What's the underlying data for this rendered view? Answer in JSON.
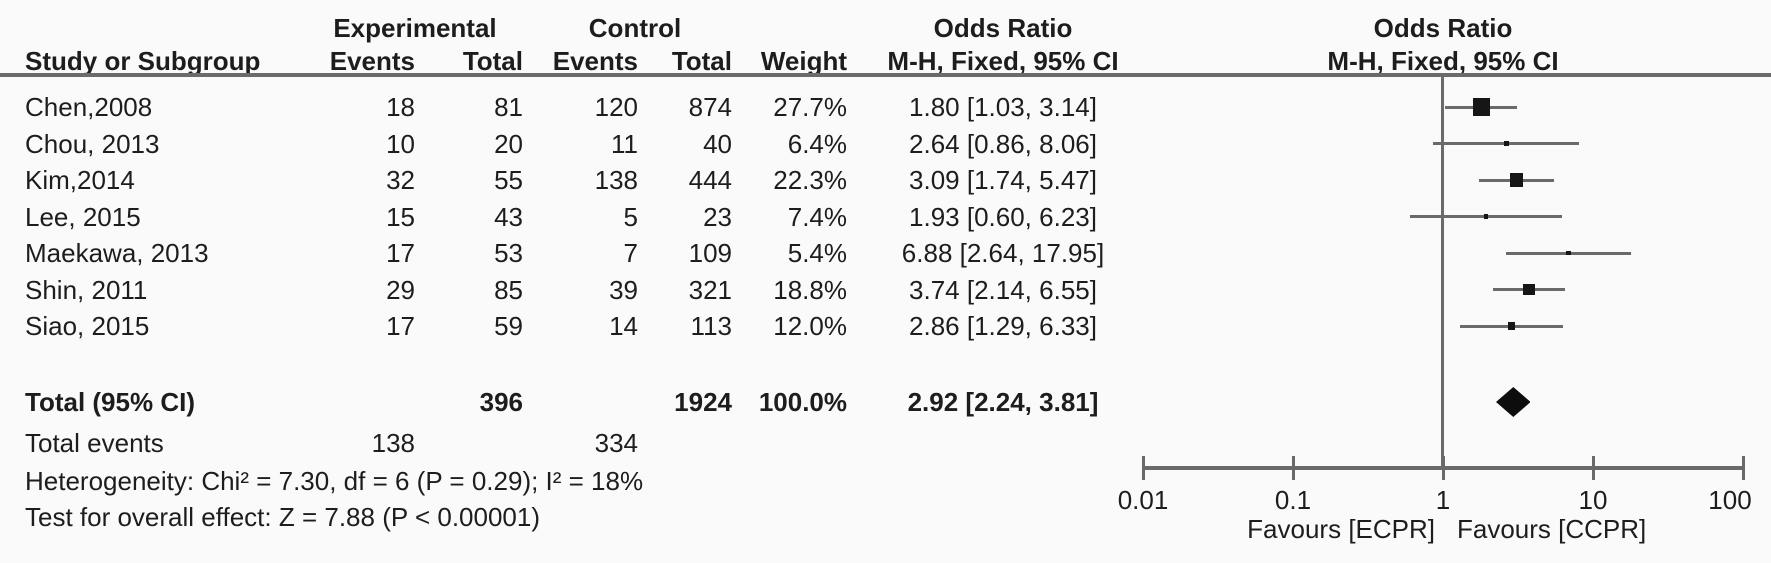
{
  "header": {
    "study": "Study or Subgroup",
    "group_experimental": "Experimental",
    "group_control": "Control",
    "exp_events": "Events",
    "exp_total": "Total",
    "ctrl_events": "Events",
    "ctrl_total": "Total",
    "weight": "Weight",
    "or_text": {
      "line1": "Odds Ratio",
      "line2": "M-H, Fixed, 95% CI"
    },
    "or_plot": {
      "line1": "Odds Ratio",
      "line2": "M-H, Fixed, 95% CI"
    }
  },
  "chart_data": {
    "type": "forest",
    "effect_measure": "Odds Ratio",
    "method": "M-H, Fixed, 95% CI",
    "x_scale": "log",
    "x_range": [
      0.01,
      100
    ],
    "x_ticks": [
      "0.01",
      "0.1",
      "1",
      "10",
      "100"
    ],
    "null_line": 1,
    "favours_left": "Favours [ECPR]",
    "favours_right": "Favours [CCPR]",
    "studies": [
      {
        "name": "Chen,2008",
        "exp_events": "18",
        "exp_total": "81",
        "ctrl_events": "120",
        "ctrl_total": "874",
        "weight": "27.7%",
        "weight_pct": 27.7,
        "or": 1.8,
        "ci_low": 1.03,
        "ci_high": 3.14,
        "or_ci_label": "1.80 [1.03, 3.14]"
      },
      {
        "name": "Chou, 2013",
        "exp_events": "10",
        "exp_total": "20",
        "ctrl_events": "11",
        "ctrl_total": "40",
        "weight": "6.4%",
        "weight_pct": 6.4,
        "or": 2.64,
        "ci_low": 0.86,
        "ci_high": 8.06,
        "or_ci_label": "2.64 [0.86, 8.06]"
      },
      {
        "name": "Kim,2014",
        "exp_events": "32",
        "exp_total": "55",
        "ctrl_events": "138",
        "ctrl_total": "444",
        "weight": "22.3%",
        "weight_pct": 22.3,
        "or": 3.09,
        "ci_low": 1.74,
        "ci_high": 5.47,
        "or_ci_label": "3.09 [1.74, 5.47]"
      },
      {
        "name": "Lee, 2015",
        "exp_events": "15",
        "exp_total": "43",
        "ctrl_events": "5",
        "ctrl_total": "23",
        "weight": "7.4%",
        "weight_pct": 7.4,
        "or": 1.93,
        "ci_low": 0.6,
        "ci_high": 6.23,
        "or_ci_label": "1.93 [0.60, 6.23]"
      },
      {
        "name": "Maekawa, 2013",
        "exp_events": "17",
        "exp_total": "53",
        "ctrl_events": "7",
        "ctrl_total": "109",
        "weight": "5.4%",
        "weight_pct": 5.4,
        "or": 6.88,
        "ci_low": 2.64,
        "ci_high": 17.95,
        "or_ci_label": "6.88 [2.64, 17.95]"
      },
      {
        "name": "Shin, 2011",
        "exp_events": "29",
        "exp_total": "85",
        "ctrl_events": "39",
        "ctrl_total": "321",
        "weight": "18.8%",
        "weight_pct": 18.8,
        "or": 3.74,
        "ci_low": 2.14,
        "ci_high": 6.55,
        "or_ci_label": "3.74 [2.14, 6.55]"
      },
      {
        "name": "Siao, 2015",
        "exp_events": "17",
        "exp_total": "59",
        "ctrl_events": "14",
        "ctrl_total": "113",
        "weight": "12.0%",
        "weight_pct": 12.0,
        "or": 2.86,
        "ci_low": 1.29,
        "ci_high": 6.33,
        "or_ci_label": "2.86 [1.29, 6.33]"
      }
    ],
    "total": {
      "label": "Total (95% CI)",
      "exp_total": "396",
      "ctrl_total": "1924",
      "weight": "100.0%",
      "or": 2.92,
      "ci_low": 2.24,
      "ci_high": 3.81,
      "or_ci_label": "2.92 [2.24, 3.81]"
    },
    "total_events": {
      "label": "Total events",
      "exp": "138",
      "ctrl": "334"
    },
    "heterogeneity": "Heterogeneity: Chi² = 7.30, df = 6 (P = 0.29); I² = 18%",
    "overall_effect": "Test for overall effect: Z = 7.88 (P < 0.00001)"
  }
}
